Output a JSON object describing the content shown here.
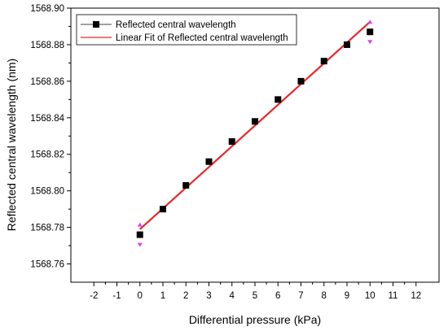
{
  "chart_data": {
    "type": "scatter",
    "xlabel": "Differential pressure (kPa)",
    "ylabel": "Reflected central wavelength (nm)",
    "xlim": [
      -3,
      13
    ],
    "ylim": [
      1568.75,
      1568.9
    ],
    "x_ticks": [
      -2,
      -1,
      0,
      1,
      2,
      3,
      4,
      5,
      6,
      7,
      8,
      9,
      10,
      11,
      12
    ],
    "y_ticks": [
      1568.76,
      1568.78,
      1568.8,
      1568.82,
      1568.84,
      1568.86,
      1568.88,
      1568.9
    ],
    "y_tick_labels": [
      "1568.76",
      "1568.78",
      "1568.80",
      "1568.82",
      "1568.84",
      "1568.86",
      "1568.88",
      "1568.90"
    ],
    "grid": false,
    "legend_position": "top-left",
    "series": [
      {
        "name": "Reflected central wavelength",
        "kind": "scatter",
        "marker": "square",
        "color": "#000000",
        "x": [
          0,
          1,
          2,
          3,
          4,
          5,
          6,
          7,
          8,
          9,
          10
        ],
        "y": [
          1568.776,
          1568.79,
          1568.803,
          1568.816,
          1568.827,
          1568.838,
          1568.85,
          1568.86,
          1568.871,
          1568.88,
          1568.887
        ]
      },
      {
        "name": "Linear Fit of Reflected central wavelength",
        "kind": "line",
        "color": "#e8272a",
        "x": [
          0,
          10
        ],
        "y": [
          1568.779,
          1568.8925
        ]
      }
    ],
    "error_markers": [
      {
        "x": 0,
        "y": 1568.776,
        "color": "#e040e0"
      },
      {
        "x": 10,
        "y": 1568.887,
        "color": "#e040e0"
      }
    ]
  }
}
